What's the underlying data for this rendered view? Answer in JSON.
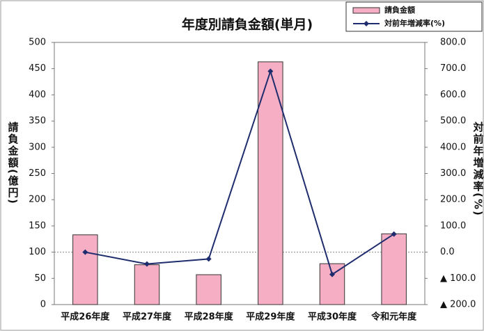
{
  "chart_data": {
    "type": "bar-line",
    "title": "年度別請負金額(単月)",
    "ylabel": "請負金額(億円)",
    "y2label": "対前年増減率(%)",
    "categories": [
      "平成26年度",
      "平成27年度",
      "平成28年度",
      "平成29年度",
      "平成30年度",
      "令和元年度"
    ],
    "series": [
      {
        "name": "請負金額",
        "type": "bar",
        "color": "#f5aec4",
        "values": [
          133,
          76,
          57,
          463,
          78,
          135
        ]
      },
      {
        "name": "対前年増減率(%)",
        "type": "line",
        "axis": "y2",
        "color": "#1f2d6e",
        "values": [
          0,
          -45,
          -26,
          690,
          -85,
          69
        ]
      }
    ],
    "ylim": [
      0,
      500
    ],
    "yticks": [
      0,
      50,
      100,
      150,
      200,
      250,
      300,
      350,
      400,
      450,
      500
    ],
    "y2lim": [
      -200,
      800
    ],
    "y2ticks": [
      {
        "value": -200,
        "label": "▲ 200.0"
      },
      {
        "value": -100,
        "label": "▲ 100.0"
      },
      {
        "value": 0,
        "label": "0.0"
      },
      {
        "value": 100,
        "label": "100.0"
      },
      {
        "value": 200,
        "label": "200.0"
      },
      {
        "value": 300,
        "label": "300.0"
      },
      {
        "value": 400,
        "label": "400.0"
      },
      {
        "value": 500,
        "label": "500.0"
      },
      {
        "value": 600,
        "label": "600.0"
      },
      {
        "value": 700,
        "label": "700.0"
      },
      {
        "value": 800,
        "label": "800.0"
      }
    ],
    "legend": "top-right"
  }
}
